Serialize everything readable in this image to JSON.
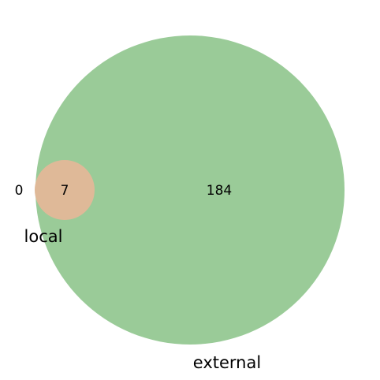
{
  "venn": {
    "sets": [
      {
        "label": "local",
        "color": "#dfb998"
      },
      {
        "label": "external",
        "color": "#9acb98"
      }
    ],
    "regions": {
      "local_only": "0",
      "both": "7",
      "external_only": "184"
    }
  }
}
